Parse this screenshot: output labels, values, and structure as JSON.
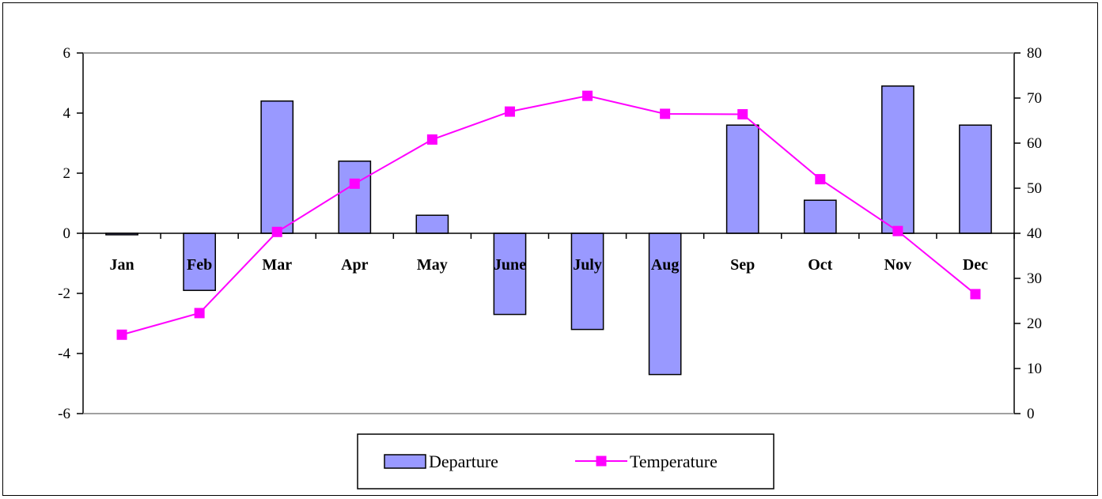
{
  "chart_data": {
    "type": "bar",
    "categories": [
      "Jan",
      "Feb",
      "Mar",
      "Apr",
      "May",
      "June",
      "July",
      "Aug",
      "Sep",
      "Oct",
      "Nov",
      "Dec"
    ],
    "series": [
      {
        "name": "Departure",
        "type": "bar",
        "axis": "left",
        "color": "#9999ff",
        "values": [
          -0.05,
          -1.9,
          4.4,
          2.4,
          0.6,
          -2.7,
          -3.2,
          -4.7,
          3.6,
          1.1,
          4.9,
          3.6
        ]
      },
      {
        "name": "Temperature",
        "type": "line",
        "axis": "right",
        "color": "#ff00ff",
        "marker": "square",
        "values": [
          17.5,
          22.3,
          40.3,
          51,
          60.8,
          67,
          70.5,
          66.5,
          66.4,
          52,
          40.5,
          26.5
        ]
      }
    ],
    "y_left": {
      "min": -6,
      "max": 6,
      "ticks": [
        -6,
        -4,
        -2,
        0,
        2,
        4,
        6
      ]
    },
    "y_right": {
      "min": 0,
      "max": 80,
      "ticks": [
        0,
        10,
        20,
        30,
        40,
        50,
        60,
        70,
        80
      ]
    },
    "title": "",
    "xlabel": "",
    "ylabel": "",
    "grid": false,
    "legend_position": "bottom"
  }
}
